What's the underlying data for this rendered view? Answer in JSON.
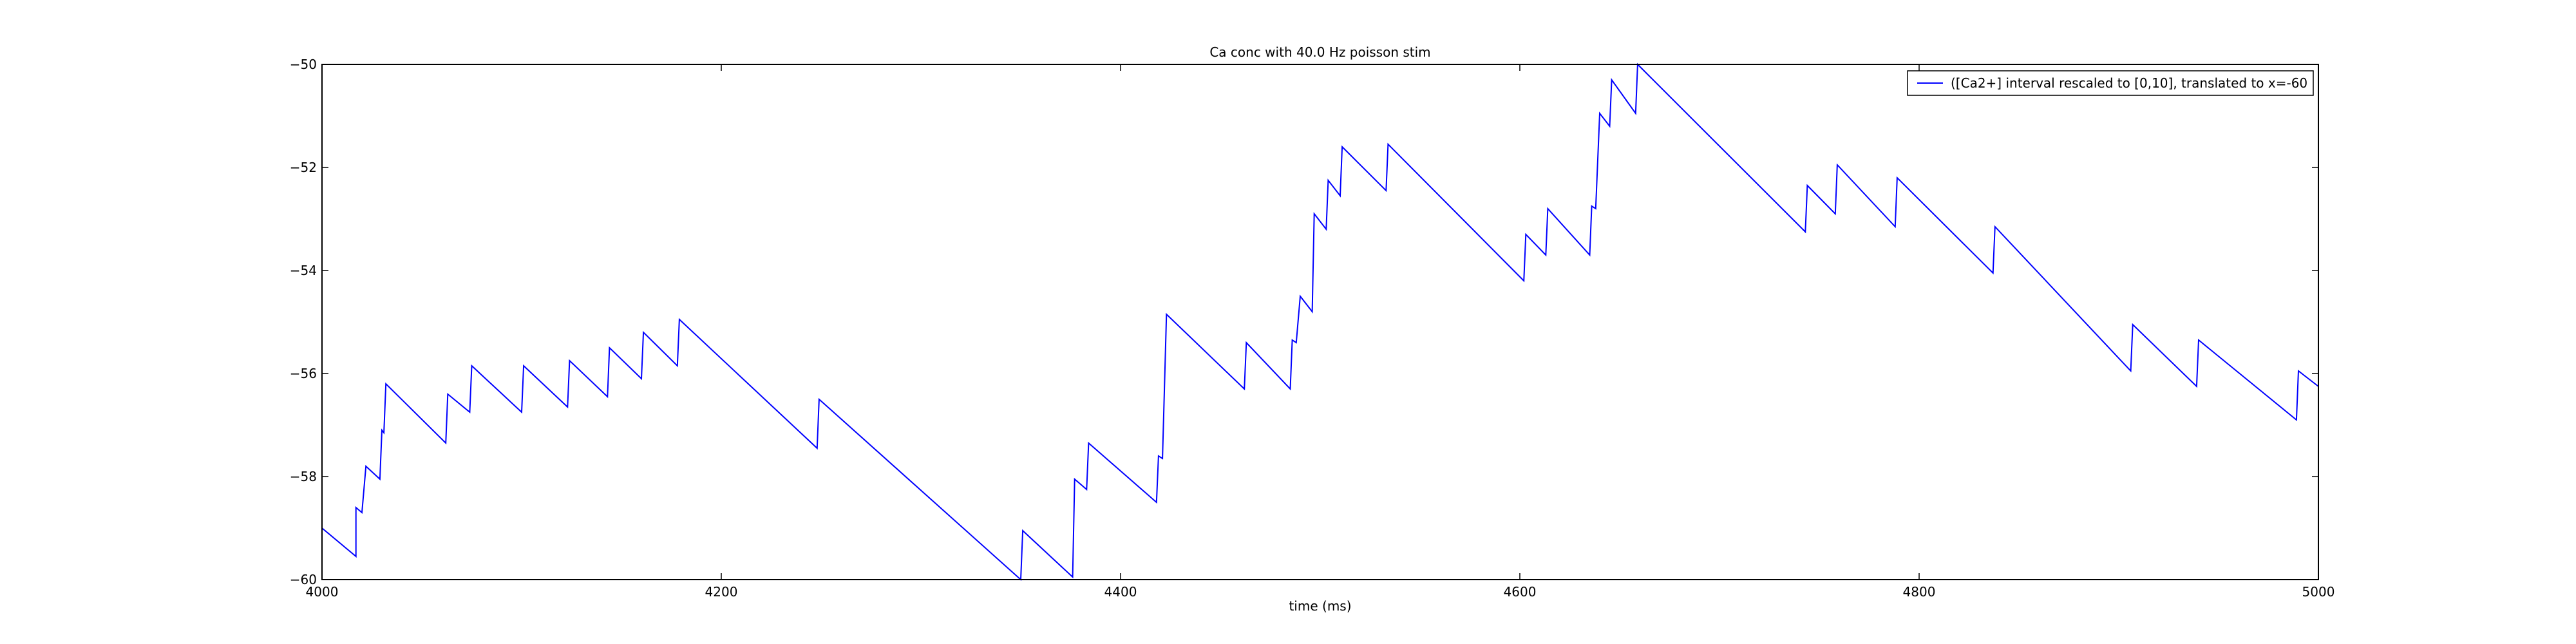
{
  "chart_data": {
    "type": "line",
    "title": "Ca conc with 40.0 Hz poisson stim",
    "xlabel": "time (ms)",
    "ylabel": "",
    "xlim": [
      4000,
      5000
    ],
    "ylim": [
      -60,
      -50
    ],
    "xticks": [
      4000,
      4200,
      4400,
      4600,
      4800,
      5000
    ],
    "yticks": [
      -60,
      -58,
      -56,
      -54,
      -52,
      -50
    ],
    "xtick_labels": [
      "4000",
      "4200",
      "4400",
      "4600",
      "4800",
      "5000"
    ],
    "ytick_labels": [
      "−60",
      "−58",
      "−56",
      "−54",
      "−52",
      "−50"
    ],
    "grid": false,
    "legend_position": "top-right",
    "series": [
      {
        "name": "([Ca2+] interval rescaled to [0,10], translated to x=-60",
        "color": "#0000ff",
        "points": [
          [
            4000,
            -59.0
          ],
          [
            4017,
            -59.55
          ],
          [
            4017,
            -58.6
          ],
          [
            4020,
            -58.7
          ],
          [
            4022,
            -57.8
          ],
          [
            4029,
            -58.05
          ],
          [
            4030,
            -57.1
          ],
          [
            4031,
            -57.15
          ],
          [
            4032,
            -56.2
          ],
          [
            4062,
            -57.35
          ],
          [
            4063,
            -56.4
          ],
          [
            4074,
            -56.75
          ],
          [
            4075,
            -55.85
          ],
          [
            4100,
            -56.75
          ],
          [
            4101,
            -55.85
          ],
          [
            4123,
            -56.65
          ],
          [
            4124,
            -55.75
          ],
          [
            4143,
            -56.45
          ],
          [
            4144,
            -55.5
          ],
          [
            4160,
            -56.1
          ],
          [
            4161,
            -55.2
          ],
          [
            4178,
            -55.85
          ],
          [
            4179,
            -54.95
          ],
          [
            4248,
            -57.45
          ],
          [
            4249,
            -56.5
          ],
          [
            4350,
            -60.0
          ],
          [
            4351,
            -59.05
          ],
          [
            4376,
            -59.95
          ],
          [
            4377,
            -58.05
          ],
          [
            4383,
            -58.25
          ],
          [
            4384,
            -57.35
          ],
          [
            4418,
            -58.5
          ],
          [
            4419,
            -57.6
          ],
          [
            4421,
            -57.65
          ],
          [
            4423,
            -54.85
          ],
          [
            4462,
            -56.3
          ],
          [
            4463,
            -55.4
          ],
          [
            4485,
            -56.3
          ],
          [
            4486,
            -55.35
          ],
          [
            4488,
            -55.4
          ],
          [
            4490,
            -54.5
          ],
          [
            4496,
            -54.8
          ],
          [
            4497,
            -52.9
          ],
          [
            4503,
            -53.2
          ],
          [
            4504,
            -52.25
          ],
          [
            4510,
            -52.55
          ],
          [
            4511,
            -51.6
          ],
          [
            4533,
            -52.45
          ],
          [
            4534,
            -51.55
          ],
          [
            4602,
            -54.2
          ],
          [
            4603,
            -53.3
          ],
          [
            4613,
            -53.7
          ],
          [
            4614,
            -52.8
          ],
          [
            4635,
            -53.7
          ],
          [
            4636,
            -52.75
          ],
          [
            4638,
            -52.8
          ],
          [
            4640,
            -50.95
          ],
          [
            4645,
            -51.2
          ],
          [
            4646,
            -50.3
          ],
          [
            4658,
            -50.95
          ],
          [
            4659,
            -50.0
          ],
          [
            4743,
            -53.25
          ],
          [
            4744,
            -52.35
          ],
          [
            4758,
            -52.9
          ],
          [
            4759,
            -51.95
          ],
          [
            4788,
            -53.15
          ],
          [
            4789,
            -52.2
          ],
          [
            4837,
            -54.05
          ],
          [
            4838,
            -53.15
          ],
          [
            4906,
            -55.95
          ],
          [
            4907,
            -55.05
          ],
          [
            4939,
            -56.25
          ],
          [
            4940,
            -55.35
          ],
          [
            4989,
            -56.9
          ],
          [
            4990,
            -55.95
          ],
          [
            5000,
            -56.25
          ]
        ]
      }
    ]
  }
}
